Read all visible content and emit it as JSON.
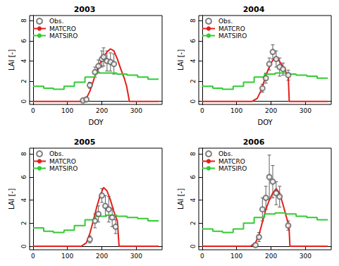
{
  "chart_data": [
    {
      "type": "line",
      "title": "2003",
      "x_label": "DOY",
      "y_label": "LAI [-]",
      "xlim": [
        -10,
        375
      ],
      "xticks": [
        0,
        100,
        200,
        300
      ],
      "ylim": [
        -0.3,
        8.5
      ],
      "yticks": [
        0,
        2,
        4,
        6,
        8
      ],
      "legend": "upper left",
      "series": [
        {
          "name": "Obs.",
          "type": "scatter",
          "marker": "open_circle",
          "color": "#606060",
          "x": [
            145,
            155,
            165,
            180,
            190,
            200,
            205,
            215,
            225,
            235
          ],
          "values": [
            0.1,
            0.2,
            1.6,
            2.9,
            3.5,
            4.2,
            4.4,
            4.0,
            3.9,
            3.7
          ],
          "errors": [
            0.1,
            0.2,
            0.3,
            0.5,
            0.6,
            0.8,
            0.9,
            1.0,
            0.9,
            1.0
          ]
        },
        {
          "name": "MATCRO",
          "type": "line",
          "color": "#e3201c",
          "x": [
            0,
            140,
            155,
            165,
            175,
            185,
            195,
            205,
            215,
            225,
            235,
            245,
            255,
            265,
            272,
            280,
            365
          ],
          "values": [
            0,
            0,
            0.3,
            1.0,
            2.0,
            3.0,
            3.8,
            4.4,
            4.9,
            5.2,
            5.0,
            4.2,
            3.2,
            2.3,
            1.5,
            0,
            0
          ]
        },
        {
          "name": "MATSIRO",
          "type": "line",
          "line_style": "step",
          "color": "#33cc33",
          "x": [
            0,
            31,
            59,
            90,
            120,
            151,
            181,
            212,
            243,
            273,
            304,
            334,
            365
          ],
          "values": [
            1.5,
            1.3,
            1.2,
            1.5,
            1.9,
            2.4,
            2.8,
            2.8,
            2.7,
            2.6,
            2.4,
            2.2,
            2.2
          ]
        }
      ]
    },
    {
      "type": "line",
      "title": "2004",
      "x_label": "DOY",
      "y_label": "LAI [-]",
      "xlim": [
        -10,
        375
      ],
      "xticks": [
        0,
        100,
        200,
        300
      ],
      "ylim": [
        -0.3,
        8.5
      ],
      "yticks": [
        0,
        2,
        4,
        6,
        8
      ],
      "legend": "upper left",
      "series": [
        {
          "name": "Obs.",
          "type": "scatter",
          "marker": "open_circle",
          "color": "#606060",
          "x": [
            175,
            185,
            195,
            205,
            215,
            225,
            235,
            250
          ],
          "values": [
            1.3,
            2.3,
            3.7,
            4.9,
            4.2,
            3.4,
            3.2,
            2.6
          ],
          "errors": [
            0.4,
            0.5,
            0.6,
            0.7,
            0.8,
            0.9,
            0.6,
            0.5
          ]
        },
        {
          "name": "MATCRO",
          "type": "line",
          "color": "#e3201c",
          "x": [
            0,
            145,
            160,
            170,
            180,
            190,
            200,
            210,
            220,
            230,
            240,
            250,
            253,
            365
          ],
          "values": [
            0,
            0,
            0.3,
            1.0,
            2.0,
            3.0,
            3.8,
            4.3,
            4.2,
            3.7,
            3.1,
            2.5,
            0,
            0
          ]
        },
        {
          "name": "MATSIRO",
          "type": "line",
          "line_style": "step",
          "color": "#33cc33",
          "x": [
            0,
            31,
            59,
            90,
            120,
            151,
            181,
            212,
            243,
            273,
            304,
            334,
            365
          ],
          "values": [
            1.5,
            1.3,
            1.2,
            1.5,
            1.9,
            2.4,
            2.7,
            2.8,
            2.7,
            2.6,
            2.5,
            2.3,
            2.3
          ]
        }
      ]
    },
    {
      "type": "line",
      "title": "2005",
      "y_label": "LAI [-]",
      "xlim": [
        -10,
        375
      ],
      "xticks": [
        0,
        100,
        200,
        300
      ],
      "ylim": [
        -0.3,
        8.5
      ],
      "yticks": [
        0,
        2,
        4,
        6,
        8
      ],
      "legend": "upper left",
      "series": [
        {
          "name": "Obs.",
          "type": "scatter",
          "marker": "open_circle",
          "color": "#606060",
          "x": [
            165,
            180,
            190,
            200,
            210,
            220,
            230,
            240
          ],
          "values": [
            0.6,
            2.2,
            2.8,
            4.4,
            3.5,
            3.2,
            2.5,
            1.7
          ],
          "errors": [
            0.3,
            0.6,
            0.7,
            0.6,
            0.9,
            1.1,
            0.8,
            0.6
          ]
        },
        {
          "name": "MATCRO",
          "type": "line",
          "color": "#e3201c",
          "x": [
            0,
            140,
            155,
            165,
            175,
            185,
            195,
            205,
            215,
            225,
            235,
            245,
            250,
            365
          ],
          "values": [
            0,
            0,
            0.3,
            1.1,
            2.2,
            3.4,
            4.4,
            5.1,
            4.8,
            4.0,
            3.0,
            2.2,
            0,
            0
          ]
        },
        {
          "name": "MATSIRO",
          "type": "line",
          "line_style": "step",
          "color": "#33cc33",
          "x": [
            0,
            31,
            59,
            90,
            120,
            151,
            181,
            212,
            243,
            273,
            304,
            334,
            365
          ],
          "values": [
            1.6,
            1.3,
            1.2,
            1.4,
            1.8,
            2.3,
            2.6,
            2.7,
            2.6,
            2.5,
            2.4,
            2.2,
            2.2
          ]
        }
      ]
    },
    {
      "type": "line",
      "title": "2006",
      "y_label": "LAI [-]",
      "xlim": [
        -10,
        375
      ],
      "xticks": [
        0,
        100,
        200,
        300
      ],
      "ylim": [
        -0.3,
        8.5
      ],
      "yticks": [
        0,
        2,
        4,
        6,
        8
      ],
      "legend": "upper left",
      "series": [
        {
          "name": "Obs.",
          "type": "scatter",
          "marker": "open_circle",
          "color": "#606060",
          "x": [
            155,
            165,
            175,
            185,
            195,
            205,
            215,
            225,
            250
          ],
          "values": [
            0.1,
            0.8,
            3.2,
            4.2,
            6.0,
            5.6,
            4.6,
            4.3,
            1.8
          ],
          "errors": [
            0.1,
            0.4,
            1.0,
            1.0,
            1.9,
            1.4,
            1.0,
            0.9,
            0.4
          ]
        },
        {
          "name": "MATCRO",
          "type": "line",
          "color": "#e3201c",
          "x": [
            0,
            140,
            155,
            165,
            175,
            185,
            195,
            205,
            215,
            225,
            235,
            245,
            252,
            255,
            365
          ],
          "values": [
            0,
            0,
            0.3,
            1.0,
            2.1,
            3.2,
            4.0,
            4.6,
            5.0,
            4.6,
            3.6,
            2.5,
            1.8,
            0,
            0
          ]
        },
        {
          "name": "MATSIRO",
          "type": "line",
          "line_style": "step",
          "color": "#33cc33",
          "x": [
            0,
            31,
            59,
            90,
            120,
            151,
            181,
            212,
            243,
            273,
            304,
            334,
            365
          ],
          "values": [
            1.5,
            1.3,
            1.2,
            1.5,
            2.0,
            2.5,
            2.8,
            2.9,
            2.8,
            2.6,
            2.5,
            2.3,
            2.3
          ]
        }
      ]
    }
  ]
}
